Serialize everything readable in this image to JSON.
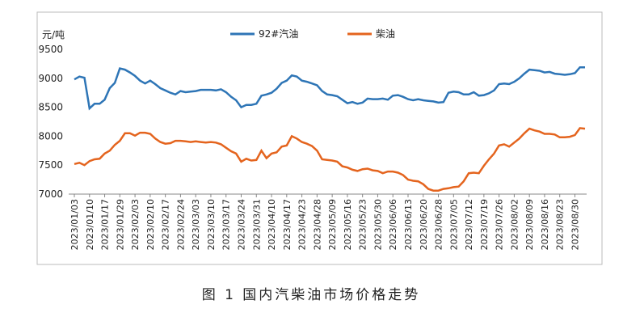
{
  "chart_data": {
    "type": "line",
    "y_label": "元/吨",
    "caption": "图 1  国内汽柴油市场价格走势",
    "categories": [
      "2023/01/03",
      null,
      null,
      "2023/01/10",
      null,
      null,
      "2023/01/17",
      null,
      null,
      "2023/01/29",
      null,
      null,
      "2023/02/03",
      null,
      null,
      "2023/02/10",
      null,
      null,
      "2023/02/17",
      null,
      null,
      "2023/02/24",
      null,
      null,
      "2023/03/03",
      null,
      null,
      "2023/03/10",
      null,
      null,
      "2023/03/17",
      null,
      null,
      "2023/03/24",
      null,
      null,
      "2023/03/31",
      null,
      null,
      "2023/04/10",
      null,
      null,
      "2023/04/17",
      null,
      null,
      "2023/04/23",
      null,
      null,
      "2023/04/28",
      null,
      null,
      "2023/05/09",
      null,
      null,
      "2023/05/16",
      null,
      null,
      "2023/05/23",
      null,
      null,
      "2023/05/30",
      null,
      null,
      "2023/06/06",
      null,
      null,
      "2023/06/13",
      null,
      null,
      "2023/06/20",
      null,
      null,
      "2023/06/28",
      null,
      null,
      "2023/07/05",
      null,
      null,
      "2023/07/12",
      null,
      null,
      "2023/07/19",
      null,
      null,
      "2023/07/26",
      null,
      null,
      "2023/08/02",
      null,
      null,
      "2023/08/09",
      null,
      null,
      "2023/08/16",
      null,
      null,
      "2023/08/23",
      null,
      null,
      "2023/08/30",
      null,
      null
    ],
    "series": [
      {
        "name": "92#汽油",
        "color": "#2e75b6",
        "values": [
          8980,
          9030,
          9010,
          8480,
          8560,
          8560,
          8630,
          8830,
          8920,
          9170,
          9150,
          9100,
          9040,
          8960,
          8910,
          8960,
          8900,
          8830,
          8790,
          8750,
          8720,
          8780,
          8760,
          8770,
          8780,
          8800,
          8800,
          8800,
          8790,
          8810,
          8760,
          8680,
          8620,
          8500,
          8540,
          8540,
          8560,
          8700,
          8720,
          8750,
          8820,
          8920,
          8960,
          9050,
          9030,
          8960,
          8940,
          8910,
          8880,
          8780,
          8720,
          8710,
          8690,
          8630,
          8570,
          8590,
          8560,
          8580,
          8650,
          8640,
          8640,
          8650,
          8630,
          8700,
          8710,
          8680,
          8640,
          8620,
          8640,
          8620,
          8610,
          8600,
          8580,
          8590,
          8750,
          8770,
          8760,
          8720,
          8720,
          8760,
          8700,
          8710,
          8740,
          8790,
          8900,
          8910,
          8900,
          8940,
          9000,
          9080,
          9150,
          9140,
          9130,
          9100,
          9110,
          9080,
          9070,
          9060,
          9070,
          9090,
          9190,
          9190
        ]
      },
      {
        "name": "柴油",
        "color": "#e4641e",
        "values": [
          7520,
          7540,
          7500,
          7570,
          7600,
          7610,
          7700,
          7750,
          7850,
          7920,
          8050,
          8050,
          8010,
          8060,
          8060,
          8040,
          7960,
          7900,
          7870,
          7880,
          7920,
          7920,
          7910,
          7900,
          7910,
          7900,
          7890,
          7900,
          7890,
          7860,
          7800,
          7740,
          7700,
          7560,
          7610,
          7580,
          7590,
          7750,
          7620,
          7700,
          7720,
          7820,
          7840,
          8000,
          7960,
          7900,
          7870,
          7830,
          7750,
          7600,
          7590,
          7580,
          7560,
          7480,
          7460,
          7420,
          7400,
          7430,
          7440,
          7410,
          7400,
          7360,
          7390,
          7390,
          7370,
          7330,
          7250,
          7230,
          7220,
          7170,
          7090,
          7060,
          7060,
          7090,
          7100,
          7120,
          7130,
          7220,
          7360,
          7370,
          7360,
          7490,
          7600,
          7700,
          7840,
          7860,
          7820,
          7890,
          7960,
          8050,
          8130,
          8100,
          8080,
          8040,
          8040,
          8030,
          7980,
          7980,
          7990,
          8020,
          8140,
          8130
        ]
      }
    ],
    "ylim": [
      7000,
      9500
    ],
    "yticks": [
      7000,
      7500,
      8000,
      8500,
      9000,
      9500
    ],
    "grid": false,
    "legend": "top"
  }
}
